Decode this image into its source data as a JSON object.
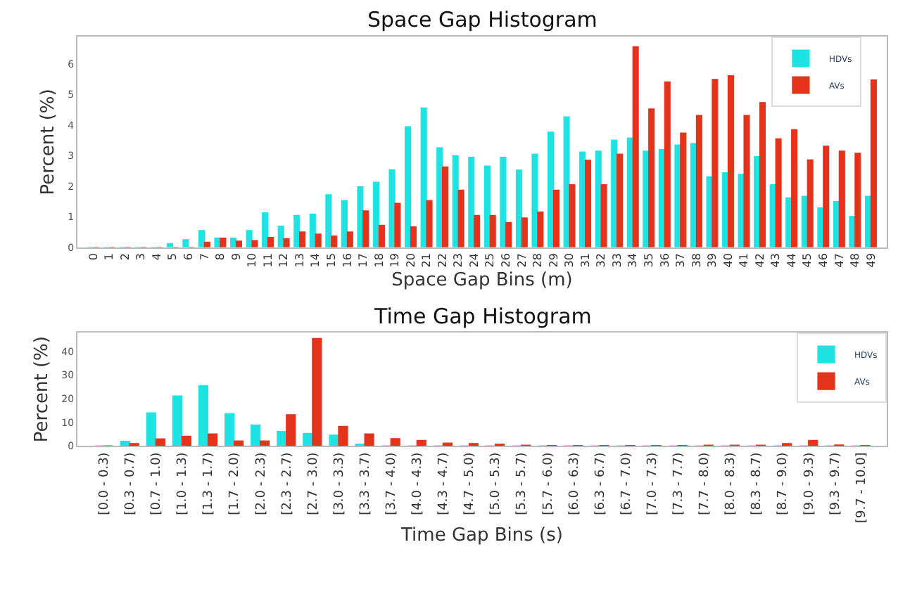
{
  "chart_data": [
    {
      "type": "bar",
      "title": "Space Gap Histogram",
      "xlabel": "Space Gap Bins (m)",
      "ylabel": "Percent (%)",
      "categories": [
        "0",
        "1",
        "2",
        "3",
        "4",
        "5",
        "6",
        "7",
        "8",
        "9",
        "10",
        "11",
        "12",
        "13",
        "14",
        "15",
        "16",
        "17",
        "18",
        "19",
        "20",
        "21",
        "22",
        "23",
        "24",
        "25",
        "26",
        "27",
        "28",
        "29",
        "30",
        "31",
        "32",
        "33",
        "34",
        "35",
        "36",
        "37",
        "38",
        "39",
        "40",
        "41",
        "42",
        "43",
        "44",
        "45",
        "46",
        "47",
        "48",
        "49"
      ],
      "series": [
        {
          "name": "HDVs",
          "color": "#1ee3e3",
          "values": [
            0,
            0,
            0,
            0,
            0,
            0.12,
            0.25,
            0.55,
            0.3,
            0.3,
            0.55,
            1.13,
            0.69,
            1.04,
            1.09,
            1.72,
            1.53,
            1.98,
            2.13,
            2.54,
            3.95,
            4.56,
            3.26,
            3.0,
            2.95,
            2.66,
            2.95,
            2.53,
            3.05,
            3.77,
            4.27,
            3.12,
            3.15,
            3.51,
            3.58,
            3.15,
            3.2,
            3.35,
            3.4,
            2.31,
            2.44,
            2.39,
            2.97,
            2.05,
            1.62,
            1.67,
            1.29,
            1.5,
            1.01,
            1.67
          ]
        },
        {
          "name": "AVs",
          "color": "#e5321b",
          "values": [
            0,
            0,
            0,
            0,
            0,
            0,
            0,
            0.17,
            0.3,
            0.2,
            0.22,
            0.32,
            0.28,
            0.5,
            0.43,
            0.37,
            0.5,
            1.19,
            0.72,
            1.44,
            0.67,
            1.53,
            2.63,
            1.87,
            1.04,
            1.04,
            0.81,
            0.96,
            1.16,
            1.87,
            2.05,
            2.85,
            2.05,
            3.05,
            6.57,
            4.53,
            5.42,
            3.74,
            4.32,
            5.5,
            5.62,
            4.32,
            4.74,
            3.55,
            3.85,
            2.86,
            3.31,
            3.15,
            3.08,
            5.48
          ]
        }
      ],
      "ylim": [
        0,
        6.9
      ],
      "yticks": [
        0,
        1,
        2,
        3,
        4,
        5,
        6
      ],
      "legend": "top right",
      "grid": false
    },
    {
      "type": "bar",
      "title": "Time Gap Histogram",
      "xlabel": "Time Gap Bins (s)",
      "ylabel": "Percent (%)",
      "categories": [
        "[0.0 - 0.3)",
        "[0.3 - 0.7)",
        "[0.7 - 1.0)",
        "[1.0 - 1.3)",
        "[1.3 - 1.7)",
        "[1.7 - 2.0)",
        "[2.0 - 2.3)",
        "[2.3 - 2.7)",
        "[2.7 - 3.0)",
        "[3.0 - 3.3)",
        "[3.3 - 3.7)",
        "[3.7 - 4.0)",
        "[4.0 - 4.3)",
        "[4.3 - 4.7)",
        "[4.7 - 5.0)",
        "[5.0 - 5.3)",
        "[5.3 - 5.7)",
        "[5.7 - 6.0)",
        "[6.0 - 6.3)",
        "[6.3 - 6.7)",
        "[6.7 - 7.0)",
        "[7.0 - 7.3)",
        "[7.3 - 7.7)",
        "[7.7 - 8.0)",
        "[8.0 - 8.3)",
        "[8.3 - 8.7)",
        "[8.7 - 9.0)",
        "[9.0 - 9.3)",
        "[9.3 - 9.7)",
        "[9.7 - 10.0]"
      ],
      "series": [
        {
          "name": "HDVs",
          "color": "#1ee3e3",
          "values": [
            0,
            2.0,
            14.0,
            21.2,
            25.6,
            13.7,
            8.9,
            6.1,
            5.3,
            4.6,
            0.8,
            0,
            0,
            0,
            0,
            0,
            0,
            0,
            0,
            0,
            0,
            0,
            0,
            0,
            0,
            0,
            0,
            0,
            0,
            0
          ]
        },
        {
          "name": "AVs",
          "color": "#e5321b",
          "values": [
            0,
            1.0,
            3.0,
            4.1,
            5.1,
            2.1,
            2.1,
            13.2,
            45.5,
            8.3,
            5.1,
            3.1,
            2.3,
            1.2,
            1.0,
            0.8,
            0.3,
            0.2,
            0.2,
            0.2,
            0.2,
            0.2,
            0.2,
            0.3,
            0.3,
            0.3,
            1.0,
            2.3,
            0.4,
            0.2
          ]
        }
      ],
      "ylim": [
        0,
        48
      ],
      "yticks": [
        0,
        10,
        20,
        30,
        40
      ],
      "legend": "top right",
      "grid": false
    }
  ]
}
